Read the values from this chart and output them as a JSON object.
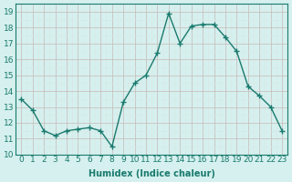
{
  "x": [
    0,
    1,
    2,
    3,
    4,
    5,
    6,
    7,
    8,
    9,
    10,
    11,
    12,
    13,
    14,
    15,
    16,
    17,
    18,
    19,
    20,
    21,
    22,
    23
  ],
  "y": [
    13.5,
    12.8,
    11.5,
    11.2,
    11.5,
    11.6,
    11.7,
    11.5,
    10.5,
    13.3,
    14.5,
    15.0,
    16.4,
    18.9,
    17.0,
    18.1,
    18.2,
    18.2,
    17.4,
    16.5,
    14.3,
    13.7,
    13.0,
    11.5
  ],
  "xlabel": "Humidex (Indice chaleur)",
  "ylabel": "",
  "ylim": [
    10,
    19.5
  ],
  "xlim": [
    -0.5,
    23.5
  ],
  "yticks": [
    10,
    11,
    12,
    13,
    14,
    15,
    16,
    17,
    18,
    19
  ],
  "xticks": [
    0,
    1,
    2,
    3,
    4,
    5,
    6,
    7,
    8,
    9,
    10,
    11,
    12,
    13,
    14,
    15,
    16,
    17,
    18,
    19,
    20,
    21,
    22,
    23
  ],
  "xtick_labels": [
    "0",
    "1",
    "2",
    "3",
    "4",
    "5",
    "6",
    "7",
    "8",
    "9",
    "10",
    "11",
    "12",
    "13",
    "14",
    "15",
    "16",
    "17",
    "18",
    "19",
    "20",
    "21",
    "22",
    "23"
  ],
  "line_color": "#1a7a6e",
  "marker": "+",
  "bg_color": "#d5f0ee",
  "grid_major_color": "#c8b8b8",
  "grid_minor_color": "#d8e8e4",
  "label_fontsize": 7,
  "tick_fontsize": 6.5
}
